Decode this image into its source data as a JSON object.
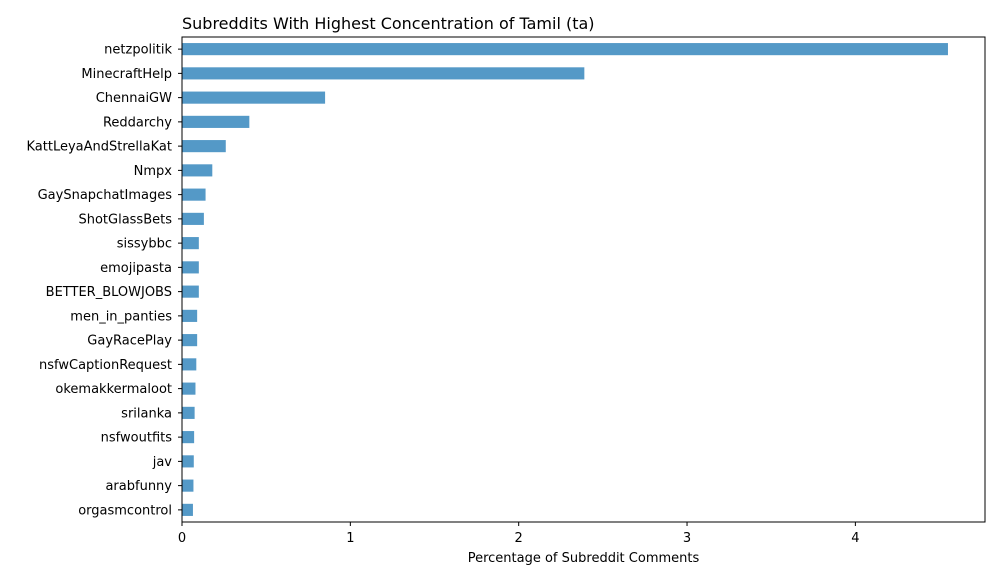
{
  "chart_data": {
    "type": "bar",
    "orientation": "horizontal",
    "title": "Subreddits With Highest Concentration of Tamil (ta)",
    "xlabel": "Percentage of Subreddit Comments",
    "ylabel": "",
    "xlim": [
      0,
      4.77
    ],
    "xticks": [
      0,
      1,
      2,
      3,
      4
    ],
    "grid": false,
    "bar_color": "#5499c7",
    "categories": [
      "netzpolitik",
      "MinecraftHelp",
      "ChennaiGW",
      "Reddarchy",
      "KattLeyaAndStrellaKat",
      "Nmpx",
      "GaySnapchatImages",
      "ShotGlassBets",
      "sissybbc",
      "emojipasta",
      "BETTER_BLOWJOBS",
      "men_in_panties",
      "GayRacePlay",
      "nsfwCaptionRequest",
      "okemakkermaloot",
      "srilanka",
      "nsfwoutfits",
      "jav",
      "arabfunny",
      "orgasmcontrol"
    ],
    "values": [
      4.55,
      2.39,
      0.85,
      0.4,
      0.26,
      0.18,
      0.14,
      0.13,
      0.1,
      0.1,
      0.1,
      0.09,
      0.09,
      0.085,
      0.08,
      0.075,
      0.072,
      0.07,
      0.068,
      0.065
    ]
  }
}
